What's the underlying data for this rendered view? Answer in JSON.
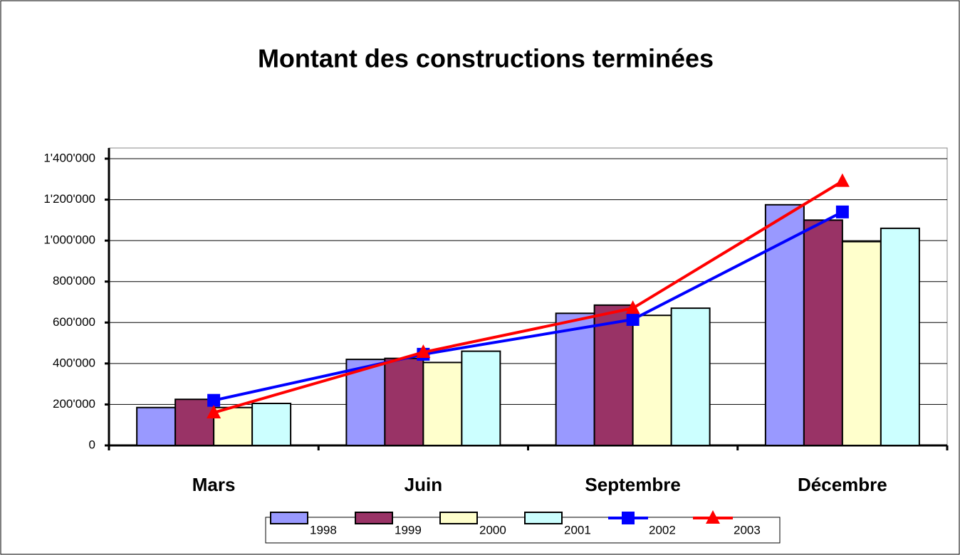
{
  "chart_data": {
    "type": "bar",
    "title": "Montant des constructions terminées",
    "categories": [
      "Mars",
      "Juin",
      "Septembre",
      "Décembre"
    ],
    "ylim": [
      0,
      1400000
    ],
    "yticks": [
      0,
      {
        "value": 200000,
        "label": "200'000"
      },
      {
        "value": 400000,
        "label": "400'000"
      },
      {
        "value": 600000,
        "label": "600'000"
      },
      {
        "value": 800000,
        "label": "800'000"
      },
      {
        "value": 1000000,
        "label": "1'000'000"
      },
      {
        "value": 1200000,
        "label": "1'200'000"
      },
      {
        "value": 1400000,
        "label": "1'400'000"
      }
    ],
    "grid": true,
    "series": [
      {
        "name": "1998",
        "type": "bar",
        "color": "#9999ff",
        "values": [
          185000,
          420000,
          645000,
          1175000
        ]
      },
      {
        "name": "1999",
        "type": "bar",
        "color": "#993366",
        "values": [
          225000,
          425000,
          685000,
          1100000
        ]
      },
      {
        "name": "2000",
        "type": "bar",
        "color": "#ffffcc",
        "values": [
          185000,
          405000,
          635000,
          995000
        ]
      },
      {
        "name": "2001",
        "type": "bar",
        "color": "#ccffff",
        "values": [
          205000,
          460000,
          670000,
          1060000
        ]
      },
      {
        "name": "2002",
        "type": "line",
        "color": "#0000ff",
        "values": [
          220000,
          445000,
          615000,
          1140000
        ]
      },
      {
        "name": "2003",
        "type": "line",
        "color": "#ff0000",
        "values": [
          160000,
          455000,
          670000,
          1290000
        ]
      }
    ]
  }
}
